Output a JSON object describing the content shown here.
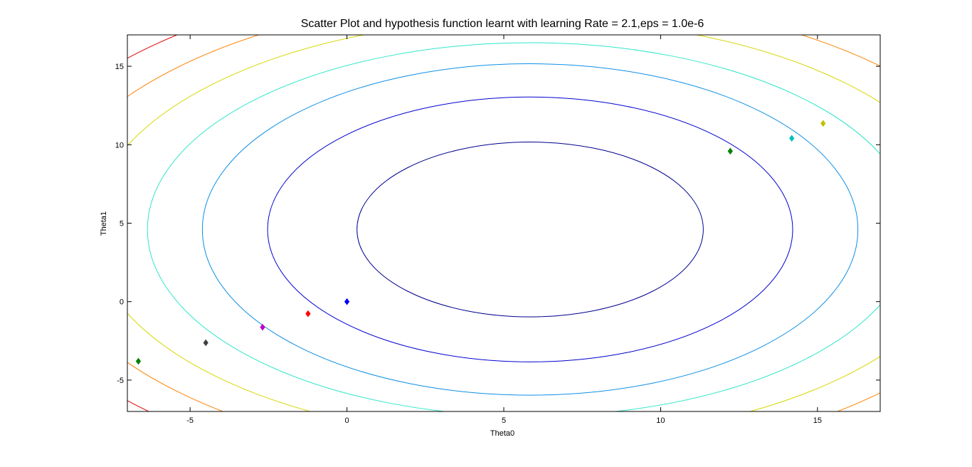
{
  "chart_data": {
    "type": "contour-scatter",
    "title": "Scatter Plot and hypothesis function learnt with learning Rate = 2.1,eps = 1.0e-6",
    "x_label": "Theta0",
    "y_label": "Theta1",
    "xlim": [
      -7,
      17
    ],
    "ylim": [
      -7,
      17
    ],
    "xticks": [
      -5,
      0,
      5,
      10,
      15
    ],
    "yticks": [
      -5,
      0,
      5,
      10,
      15
    ],
    "contour_center": [
      5.84,
      4.6
    ],
    "contours": [
      {
        "color": "#00008f",
        "rx": 5.52,
        "ry": 5.57
      },
      {
        "color": "#0000d0",
        "rx": 8.37,
        "ry": 8.44
      },
      {
        "color": "#0d8fe6",
        "rx": 10.45,
        "ry": 10.56
      },
      {
        "color": "#2fe6c8",
        "rx": 12.2,
        "ry": 11.9
      },
      {
        "color": "#d6d600",
        "rx": 14.0,
        "ry": 13.4
      },
      {
        "color": "#ff8000",
        "rx": 15.6,
        "ry": 14.9
      },
      {
        "color": "#e00000",
        "rx": 17.2,
        "ry": 16.4
      }
    ],
    "x": [
      -6.65,
      -4.5,
      -2.69,
      -1.24,
      0,
      12.22,
      14.18,
      15.18
    ],
    "y": [
      -3.8,
      -2.62,
      -1.63,
      -0.77,
      0,
      9.59,
      10.41,
      11.36
    ],
    "colors": [
      "#008000",
      "#404040",
      "#c000c0",
      "#ff0000",
      "#0000ff",
      "#008000",
      "#00c0c0",
      "#c0c000"
    ]
  }
}
